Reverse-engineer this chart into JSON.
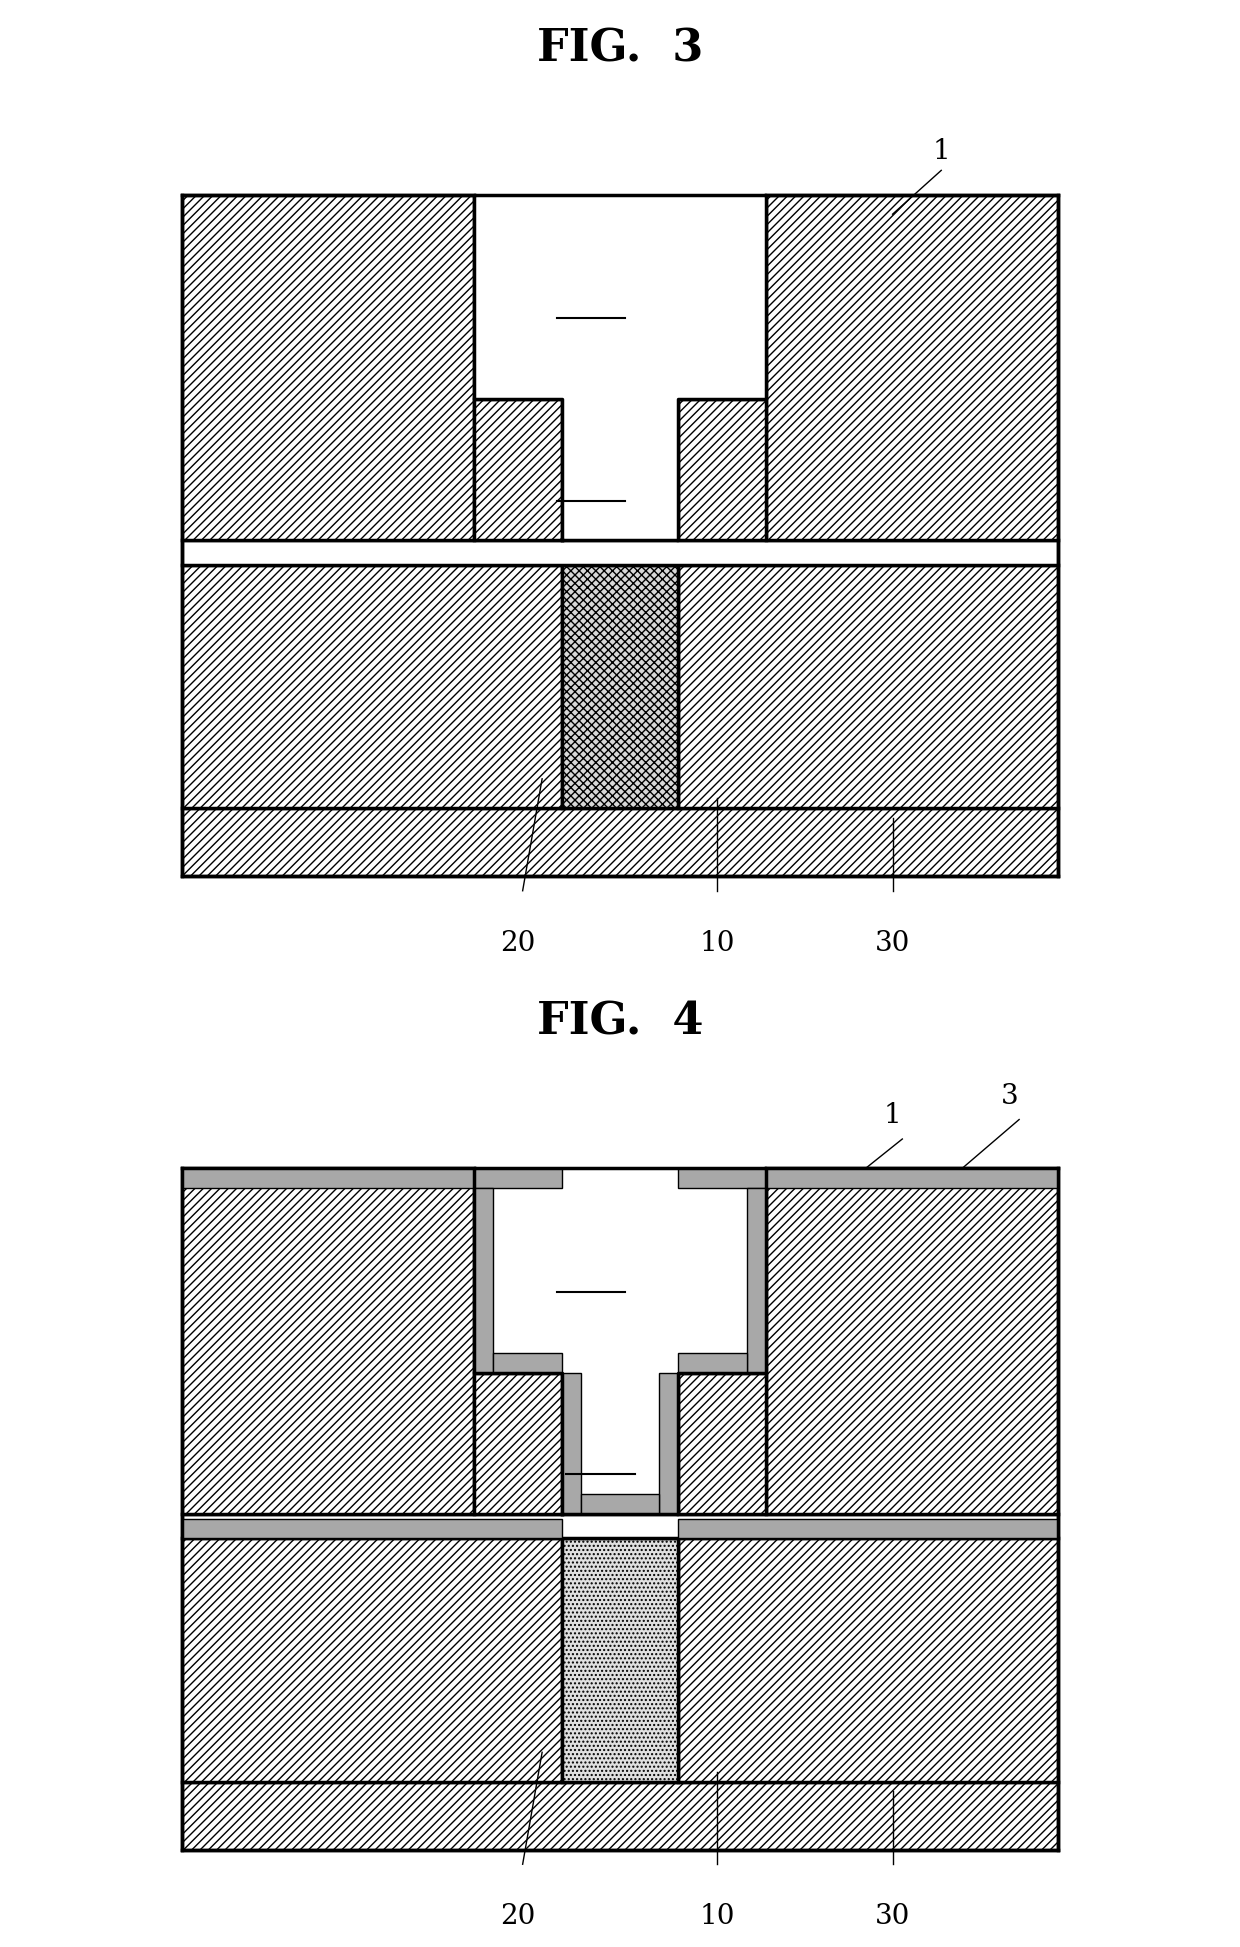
{
  "fig3_title": "FIG.  3",
  "fig4_title": "FIG.  4",
  "background_color": "#ffffff",
  "title_fontsize": 32,
  "label_fontsize": 22,
  "annotation_fontsize": 20,
  "hatch_density": "////",
  "cross_hatch": "xxxx"
}
